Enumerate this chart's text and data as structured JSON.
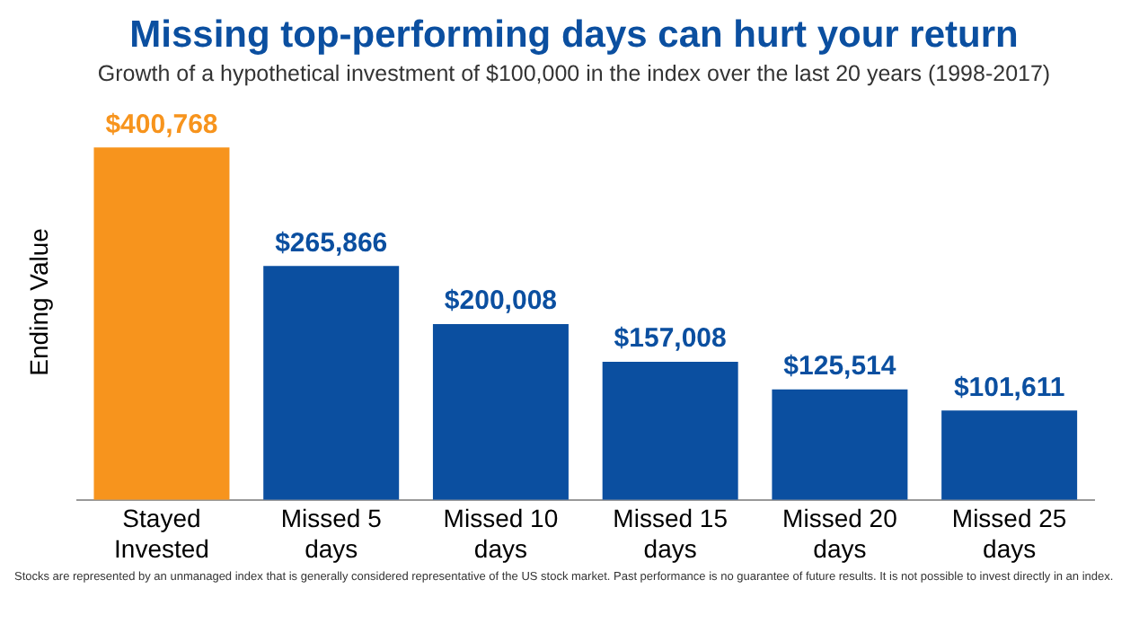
{
  "chart_data": {
    "type": "bar",
    "title": "Missing top-performing  days can hurt your return",
    "subtitle": "Growth of a hypothetical investment  of $100,000 in the index over the last 20 years (1998-2017)",
    "ylabel": "Ending Value",
    "categories": [
      "Stayed Invested",
      "Missed 5 days",
      "Missed 10 days",
      "Missed 15 days",
      "Missed 20 days",
      "Missed 25 days"
    ],
    "values": [
      400768,
      265866,
      200008,
      157008,
      125514,
      101611
    ],
    "colors": [
      "#f7941d",
      "#0b4fa0",
      "#0b4fa0",
      "#0b4fa0",
      "#0b4fa0",
      "#0b4fa0"
    ],
    "value_labels": [
      "$400,768",
      "$265,866",
      "$200,008",
      "$157,008",
      "$125,514",
      "$101,611"
    ],
    "grid": false,
    "legend": false,
    "annotations": [
      "Stocks are represented by an unmanaged index that is generally considered representative of the US stock market. Past performance is no guarantee of future results. It is not possible to invest directly in an index."
    ]
  }
}
